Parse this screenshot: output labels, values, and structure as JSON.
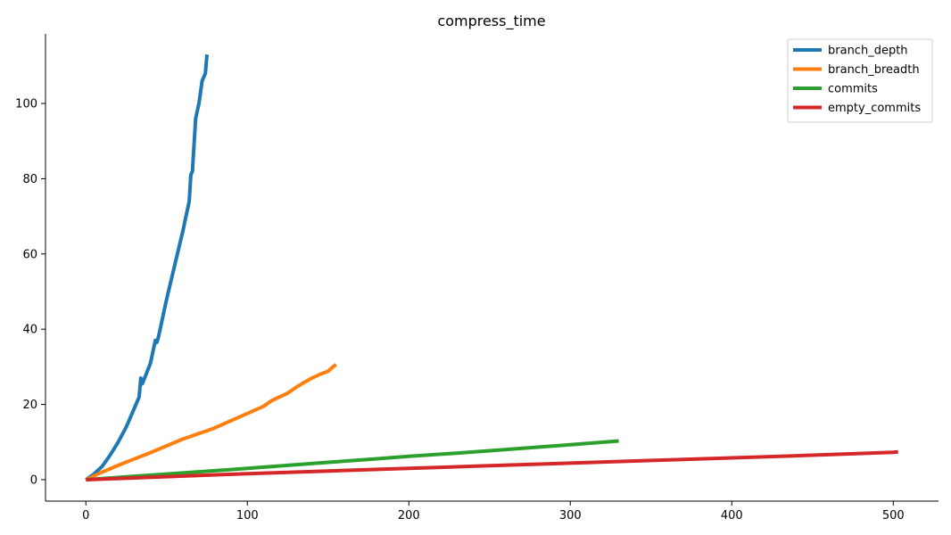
{
  "chart_data": {
    "type": "line",
    "title": "compress_time",
    "xlabel": "",
    "ylabel": "",
    "xlim": [
      -25,
      528
    ],
    "ylim": [
      -5.7,
      118.5
    ],
    "xticks": [
      0,
      100,
      200,
      300,
      400,
      500
    ],
    "yticks": [
      0,
      20,
      40,
      60,
      80,
      100
    ],
    "grid": false,
    "legend_position": "top-right",
    "series": [
      {
        "name": "branch_depth",
        "color": "#1f77b4",
        "x": [
          0,
          5,
          10,
          15,
          20,
          25,
          30,
          33,
          34,
          35,
          40,
          43,
          44,
          45,
          50,
          55,
          60,
          64,
          65,
          66,
          68,
          70,
          72,
          73,
          74,
          75
        ],
        "y": [
          0,
          1.5,
          3.5,
          6.5,
          10,
          14,
          19,
          22,
          27,
          25.5,
          31,
          37,
          36.5,
          38,
          48,
          57,
          66,
          74,
          81,
          82,
          96,
          100,
          106,
          107,
          108,
          113
        ]
      },
      {
        "name": "branch_breadth",
        "color": "#ff7f0e",
        "x": [
          0,
          10,
          20,
          30,
          40,
          50,
          60,
          65,
          70,
          75,
          80,
          90,
          100,
          110,
          115,
          120,
          125,
          130,
          135,
          140,
          145,
          148,
          150,
          153,
          155
        ],
        "y": [
          0,
          2,
          3.8,
          5.5,
          7.2,
          9,
          10.8,
          11.5,
          12.3,
          13,
          13.8,
          15.7,
          17.6,
          19.5,
          21,
          22,
          23,
          24.5,
          25.8,
          27,
          28,
          28.5,
          28.8,
          30,
          30.6
        ]
      },
      {
        "name": "commits",
        "color": "#2ca02c",
        "x": [
          0,
          25,
          50,
          75,
          100,
          125,
          150,
          175,
          200,
          225,
          250,
          275,
          300,
          325,
          330
        ],
        "y": [
          0,
          0.75,
          1.5,
          2.25,
          3,
          3.8,
          4.6,
          5.4,
          6.2,
          6.9,
          7.7,
          8.5,
          9.3,
          10.1,
          10.3
        ]
      },
      {
        "name": "empty_commits",
        "color": "#d62728",
        "x": [
          0,
          50,
          100,
          150,
          200,
          250,
          300,
          350,
          400,
          450,
          500,
          503
        ],
        "y": [
          0,
          0.8,
          1.6,
          2.3,
          3,
          3.7,
          4.4,
          5.1,
          5.8,
          6.5,
          7.3,
          7.4
        ]
      }
    ]
  }
}
